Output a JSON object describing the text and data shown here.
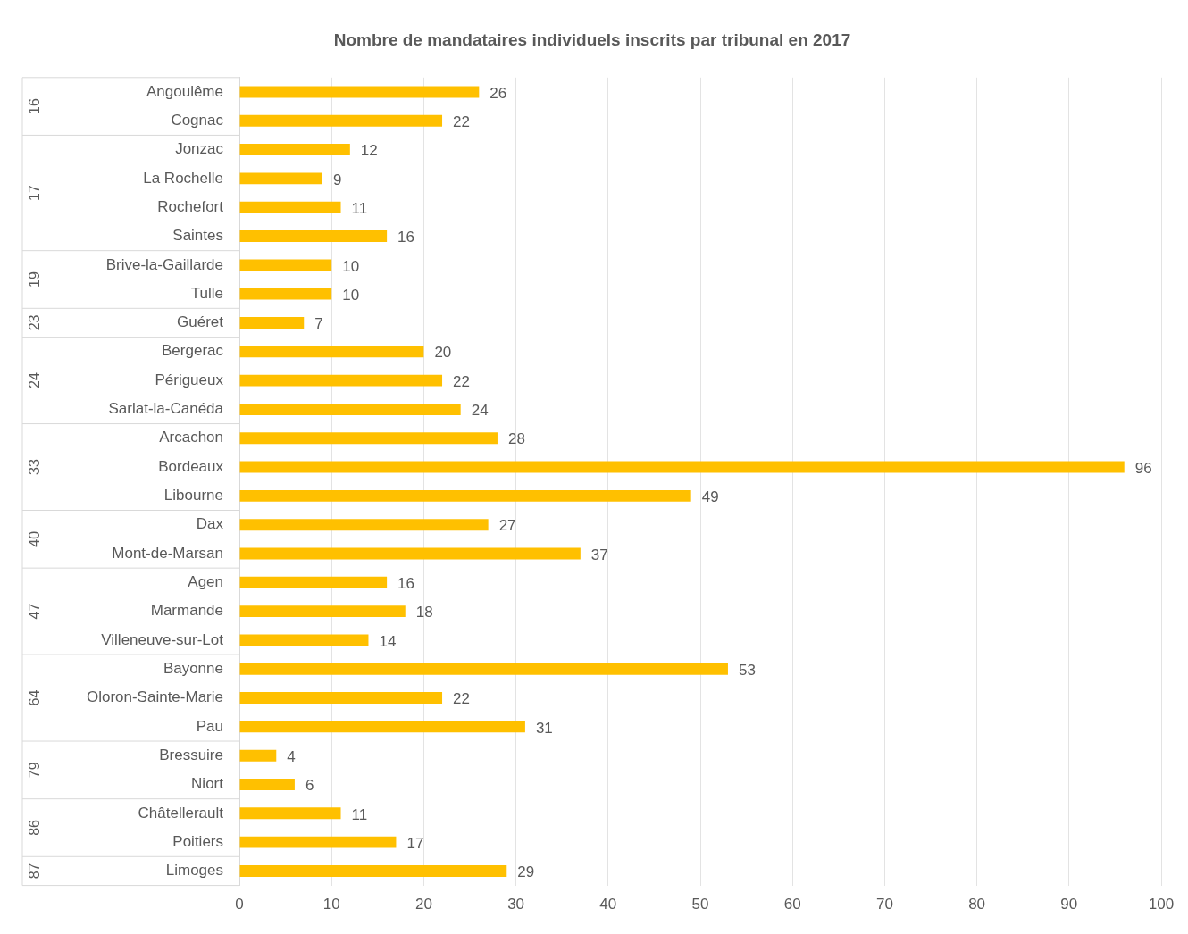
{
  "chart_data": {
    "type": "bar",
    "orientation": "horizontal",
    "title": "Nombre de mandataires individuels inscrits par tribunal en 2017",
    "categories": [
      "Angoulême",
      "Cognac",
      "Jonzac",
      "La Rochelle",
      "Rochefort",
      "Saintes",
      "Brive-la-Gaillarde",
      "Tulle",
      "Guéret",
      "Bergerac",
      "Périgueux",
      "Sarlat-la-Canéda",
      "Arcachon",
      "Bordeaux",
      "Libourne",
      "Dax",
      "Mont-de-Marsan",
      "Agen",
      "Marmande",
      "Villeneuve-sur-Lot",
      "Bayonne",
      "Oloron-Sainte-Marie",
      "Pau",
      "Bressuire",
      "Niort",
      "Châtellerault",
      "Poitiers",
      "Limoges"
    ],
    "values": [
      26,
      22,
      12,
      9,
      11,
      16,
      10,
      10,
      7,
      20,
      22,
      24,
      28,
      96,
      49,
      27,
      37,
      16,
      18,
      14,
      53,
      22,
      31,
      4,
      6,
      11,
      17,
      29
    ],
    "color": "#ffc000",
    "xlim": [
      0,
      100
    ],
    "xticks": [
      0,
      10,
      20,
      30,
      40,
      50,
      60,
      70,
      80,
      90,
      100
    ],
    "grid": "x",
    "legend": false,
    "data_labels": true,
    "annotations": [
      "16",
      "17",
      "19",
      "23",
      "24",
      "33",
      "40",
      "47",
      "64",
      "79",
      "86",
      "87"
    ]
  }
}
